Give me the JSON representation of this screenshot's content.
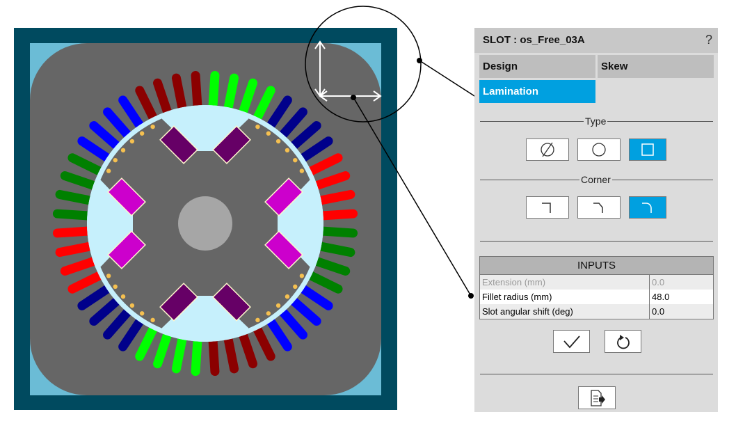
{
  "panel": {
    "title": "SLOT : os_Free_03A",
    "help_label": "?",
    "tabs": [
      {
        "label": "Design"
      },
      {
        "label": "Skew"
      },
      {
        "label": "Lamination",
        "active": true
      }
    ],
    "type_section": {
      "label": "Type",
      "options": [
        {
          "icon": "circle-slash-icon"
        },
        {
          "icon": "circle-icon"
        },
        {
          "icon": "square-icon",
          "selected": true
        }
      ]
    },
    "corner_section": {
      "label": "Corner",
      "options": [
        {
          "icon": "sharp-corner-icon"
        },
        {
          "icon": "chamfer-corner-icon"
        },
        {
          "icon": "fillet-corner-icon",
          "selected": true
        }
      ]
    },
    "inputs": {
      "header": "INPUTS",
      "rows": [
        {
          "label": "Extension (mm)",
          "value": "0.0",
          "disabled": true
        },
        {
          "label": "Fillet radius (mm)",
          "value": "48.0"
        },
        {
          "label": "Slot angular shift (deg)",
          "value": "0.0"
        }
      ]
    },
    "actions": {
      "apply_icon": "check-icon",
      "reset_icon": "undo-icon",
      "export_icon": "export-document-icon"
    }
  },
  "viewer": {
    "slot_count": 48,
    "phase_colors": [
      "#8b0000",
      "#00ff00",
      "#00008b",
      "#ff0000",
      "#008000",
      "#0000ff"
    ],
    "frame_color": "#004a5f",
    "stator_color": "#666666",
    "rotor_color": "#c6f0fc",
    "magnet_colors": {
      "vertical_pole": "#660066",
      "horizontal_pole": "#cc00cc"
    },
    "accent": "#00a0e0"
  }
}
